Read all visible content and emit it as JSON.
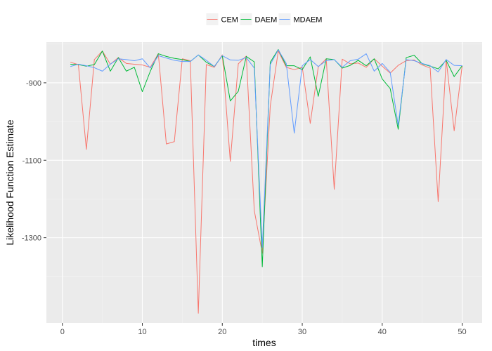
{
  "chart_data": {
    "type": "line",
    "xlabel": "times",
    "ylabel": "Likelihood Function Estimate",
    "xlim": [
      -2,
      52.5
    ],
    "ylim": [
      -1520,
      -795
    ],
    "x_ticks": [
      0,
      10,
      20,
      30,
      40,
      50
    ],
    "y_ticks": [
      -900,
      -1100,
      -1300
    ],
    "grid": true,
    "legend_position": "top",
    "x": [
      1,
      2,
      3,
      4,
      5,
      6,
      7,
      8,
      9,
      10,
      11,
      12,
      13,
      14,
      15,
      16,
      17,
      18,
      19,
      20,
      21,
      22,
      23,
      24,
      25,
      26,
      27,
      28,
      29,
      30,
      31,
      32,
      33,
      34,
      35,
      36,
      37,
      38,
      39,
      40,
      41,
      42,
      43,
      44,
      45,
      46,
      47,
      48,
      49,
      50
    ],
    "series": [
      {
        "name": "CEM",
        "color": "#F8766D",
        "values": [
          -847,
          -853,
          -1072,
          -840,
          -818,
          -852,
          -835,
          -850,
          -852,
          -854,
          -860,
          -825,
          -1058,
          -1052,
          -838,
          -843,
          -1495,
          -853,
          -860,
          -828,
          -1103,
          -851,
          -831,
          -1230,
          -1340,
          -960,
          -818,
          -860,
          -866,
          -860,
          -1005,
          -859,
          -838,
          -1175,
          -839,
          -851,
          -849,
          -860,
          -838,
          -857,
          -875,
          -855,
          -843,
          -841,
          -854,
          -862,
          -1207,
          -840,
          -1024,
          -856
        ]
      },
      {
        "name": "DAEM",
        "color": "#00BA38",
        "values": [
          -852,
          -853,
          -857,
          -853,
          -818,
          -870,
          -835,
          -870,
          -860,
          -923,
          -870,
          -825,
          -832,
          -837,
          -840,
          -845,
          -828,
          -847,
          -858,
          -830,
          -947,
          -922,
          -832,
          -846,
          -1375,
          -847,
          -814,
          -856,
          -856,
          -866,
          -833,
          -935,
          -838,
          -840,
          -862,
          -855,
          -842,
          -856,
          -838,
          -890,
          -915,
          -1020,
          -835,
          -829,
          -851,
          -857,
          -864,
          -842,
          -884,
          -856
        ]
      },
      {
        "name": "MDAEM",
        "color": "#619CFF",
        "values": [
          -858,
          -852,
          -856,
          -861,
          -870,
          -852,
          -838,
          -840,
          -843,
          -838,
          -862,
          -830,
          -836,
          -842,
          -845,
          -845,
          -828,
          -842,
          -858,
          -830,
          -841,
          -842,
          -835,
          -862,
          -1325,
          -853,
          -815,
          -850,
          -1030,
          -856,
          -840,
          -858,
          -843,
          -840,
          -860,
          -843,
          -839,
          -825,
          -870,
          -850,
          -873,
          -1010,
          -840,
          -843,
          -850,
          -856,
          -872,
          -840,
          -855,
          -856
        ]
      }
    ]
  }
}
